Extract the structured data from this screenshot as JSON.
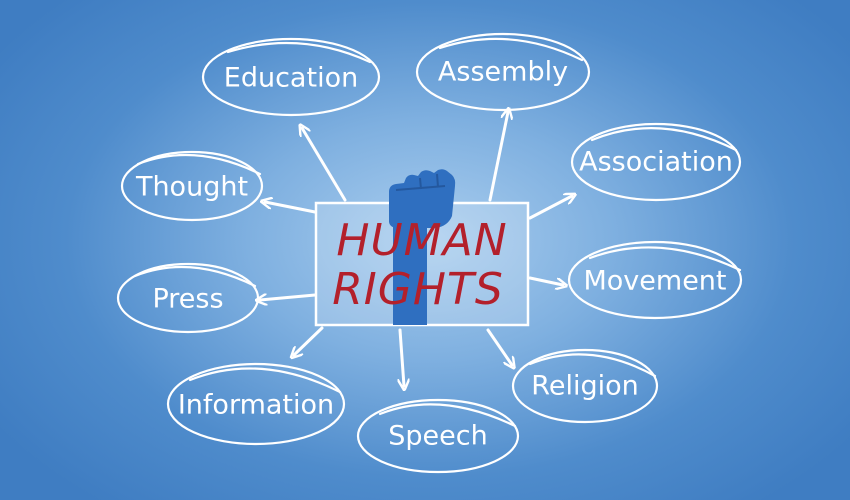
{
  "title": {
    "line1": "HUMAN",
    "line2": "RIGHTS"
  },
  "colors": {
    "title": "#b3202b",
    "fist": "#2f6fc0",
    "lines": "#ffffff"
  },
  "center_icon": "raised-fist-icon",
  "nodes": [
    {
      "id": "education",
      "label": "Education"
    },
    {
      "id": "assembly",
      "label": "Assembly"
    },
    {
      "id": "association",
      "label": "Association"
    },
    {
      "id": "movement",
      "label": "Movement"
    },
    {
      "id": "religion",
      "label": "Religion"
    },
    {
      "id": "speech",
      "label": "Speech"
    },
    {
      "id": "information",
      "label": "Information"
    },
    {
      "id": "press",
      "label": "Press"
    },
    {
      "id": "thought",
      "label": "Thought"
    }
  ]
}
